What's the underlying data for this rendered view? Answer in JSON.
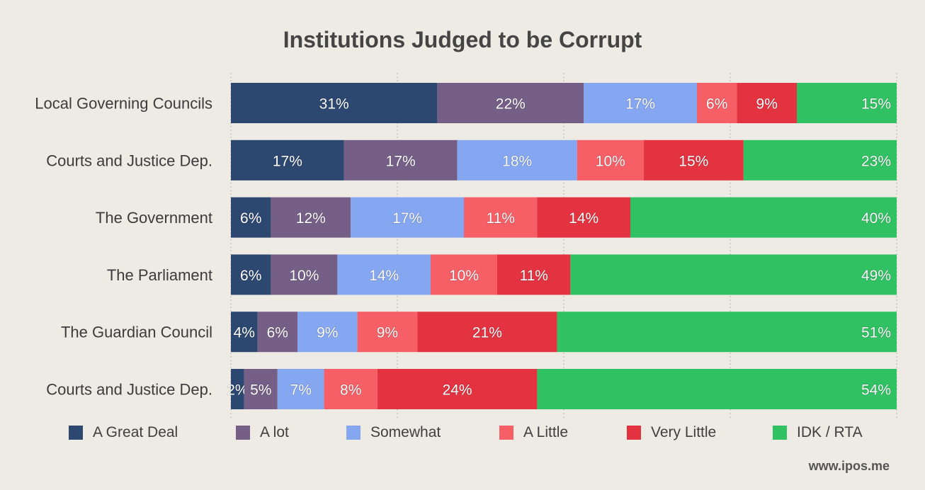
{
  "chart_data": {
    "type": "bar",
    "orientation": "horizontal",
    "stacked": true,
    "title": "Institutions Judged to be Corrupt",
    "categories": [
      "Local Governing Councils",
      "Courts and Justice Dep.",
      "The Government",
      "The Parliament",
      "The Guardian Council",
      "Courts and Justice Dep."
    ],
    "series": [
      {
        "name": "A Great Deal",
        "color": "#2c4770",
        "values": [
          31,
          17,
          6,
          6,
          4,
          2
        ]
      },
      {
        "name": "A lot",
        "color": "#755f87",
        "values": [
          22,
          17,
          12,
          10,
          6,
          5
        ]
      },
      {
        "name": "Somewhat",
        "color": "#85a6f1",
        "values": [
          17,
          18,
          17,
          14,
          9,
          7
        ]
      },
      {
        "name": "A Little",
        "color": "#f65f66",
        "values": [
          6,
          10,
          11,
          10,
          9,
          8
        ]
      },
      {
        "name": "Very Little",
        "color": "#e43340",
        "values": [
          9,
          15,
          14,
          11,
          21,
          24
        ]
      },
      {
        "name": "IDK / RTA",
        "color": "#30c262",
        "values": [
          15,
          23,
          40,
          49,
          51,
          54
        ]
      }
    ],
    "labels": [
      [
        "31%",
        "17%",
        "6%",
        "6%",
        "4%",
        "2%"
      ],
      [
        "22%",
        "17%",
        "12%",
        "10%",
        "6%",
        "5%"
      ],
      [
        "17%",
        "18%",
        "17%",
        "14%",
        "9%",
        "7%"
      ],
      [
        "6%",
        "10%",
        "11%",
        "10%",
        "9%",
        "8%"
      ],
      [
        "9%",
        "15%",
        "14%",
        "11%",
        "21%",
        "24%"
      ],
      [
        "15%",
        "23%",
        "40%",
        "49%",
        "51%",
        "54%"
      ]
    ],
    "grid": true,
    "legend_position": "bottom"
  },
  "source": "www.ipos.me"
}
